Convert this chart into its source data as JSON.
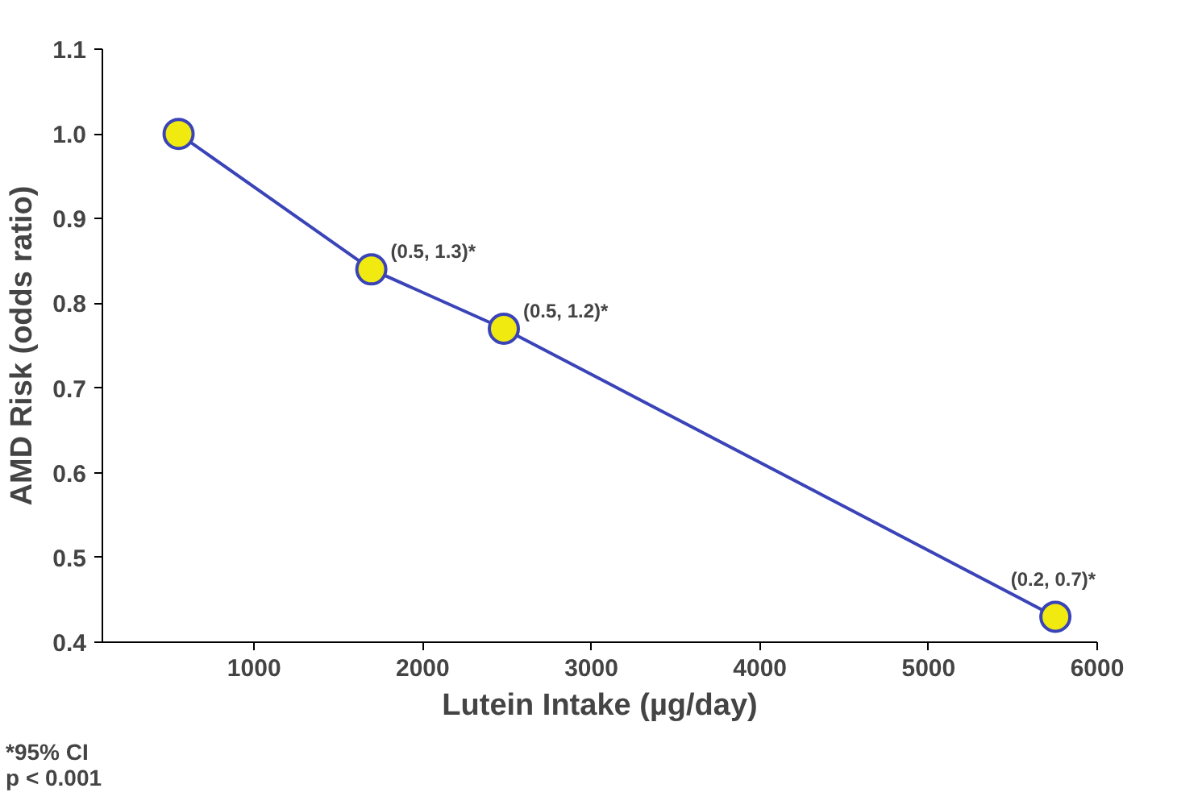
{
  "chart_data": {
    "type": "line",
    "xlabel": "Lutein Intake (µg/day)",
    "ylabel": "AMD Risk (odds ratio)",
    "x": [
      552,
      1695,
      2481,
      5752
    ],
    "series": [
      {
        "color": "#3a44b8",
        "values": [
          1.0,
          0.84,
          0.77,
          0.43
        ]
      }
    ],
    "marker": "circle",
    "grid": false,
    "xlim": [
      100,
      6000
    ],
    "xticks": [
      1000,
      2000,
      3000,
      4000,
      5000,
      6000
    ],
    "ylim": [
      0.4,
      1.1
    ],
    "yticks": [
      {
        "value": 0.4,
        "label": "0.4"
      },
      {
        "value": 0.5,
        "label": "0.5"
      },
      {
        "value": 0.6,
        "label": "0.6"
      },
      {
        "value": 0.7,
        "label": "0.7"
      },
      {
        "value": 0.8,
        "label": "0.8"
      },
      {
        "value": 0.9,
        "label": "0.9"
      },
      {
        "value": 1.0,
        "label": "1.0"
      },
      {
        "value": 1.1,
        "label": "1.1"
      }
    ],
    "annotations": [
      {
        "text": "(0.5, 1.3)*",
        "x": 1695,
        "y": 0.84
      },
      {
        "text": "(0.5, 1.2)*",
        "x": 2481,
        "y": 0.77
      },
      {
        "text": "(0.2, 0.7)*",
        "x": 5752,
        "y": 0.43
      },
      "*95% CI\np < 0.001"
    ]
  }
}
